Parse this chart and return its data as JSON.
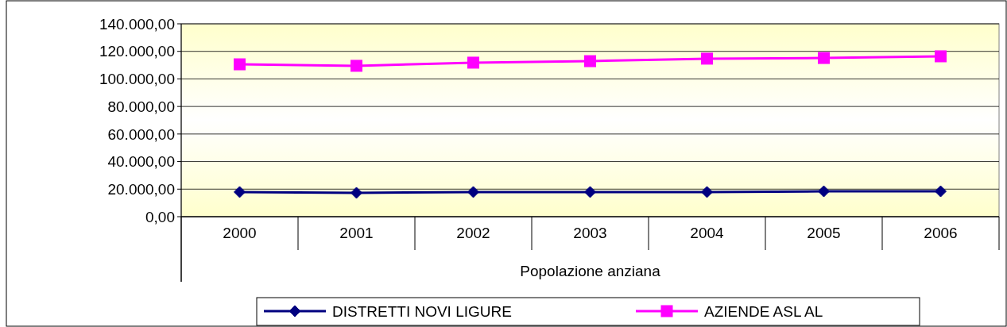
{
  "chart_data": {
    "type": "line",
    "xlabel": "Popolazione anziana",
    "categories": [
      "2000",
      "2001",
      "2002",
      "2003",
      "2004",
      "2005",
      "2006"
    ],
    "series": [
      {
        "name": "DISTRETTI NOVI LIGURE",
        "color": "#000080",
        "marker": "diamond",
        "values": [
          17900,
          17300,
          17900,
          17900,
          17900,
          18400,
          18400
        ]
      },
      {
        "name": "AZIENDE ASL AL",
        "color": "#ff00ff",
        "marker": "square",
        "values": [
          110600,
          109500,
          111800,
          112900,
          114700,
          115200,
          116400
        ]
      }
    ],
    "ylim": [
      0,
      140000
    ],
    "yticks": [
      {
        "value": 0,
        "label": "0,00"
      },
      {
        "value": 20000,
        "label": "20.000,00"
      },
      {
        "value": 40000,
        "label": "40.000,00"
      },
      {
        "value": 60000,
        "label": "60.000,00"
      },
      {
        "value": 80000,
        "label": "80.000,00"
      },
      {
        "value": 100000,
        "label": "100.000,00"
      },
      {
        "value": 120000,
        "label": "120.000,00"
      },
      {
        "value": 140000,
        "label": "140.000,00"
      }
    ],
    "grid": "y",
    "legend": "bottom",
    "line_style": "solid"
  }
}
